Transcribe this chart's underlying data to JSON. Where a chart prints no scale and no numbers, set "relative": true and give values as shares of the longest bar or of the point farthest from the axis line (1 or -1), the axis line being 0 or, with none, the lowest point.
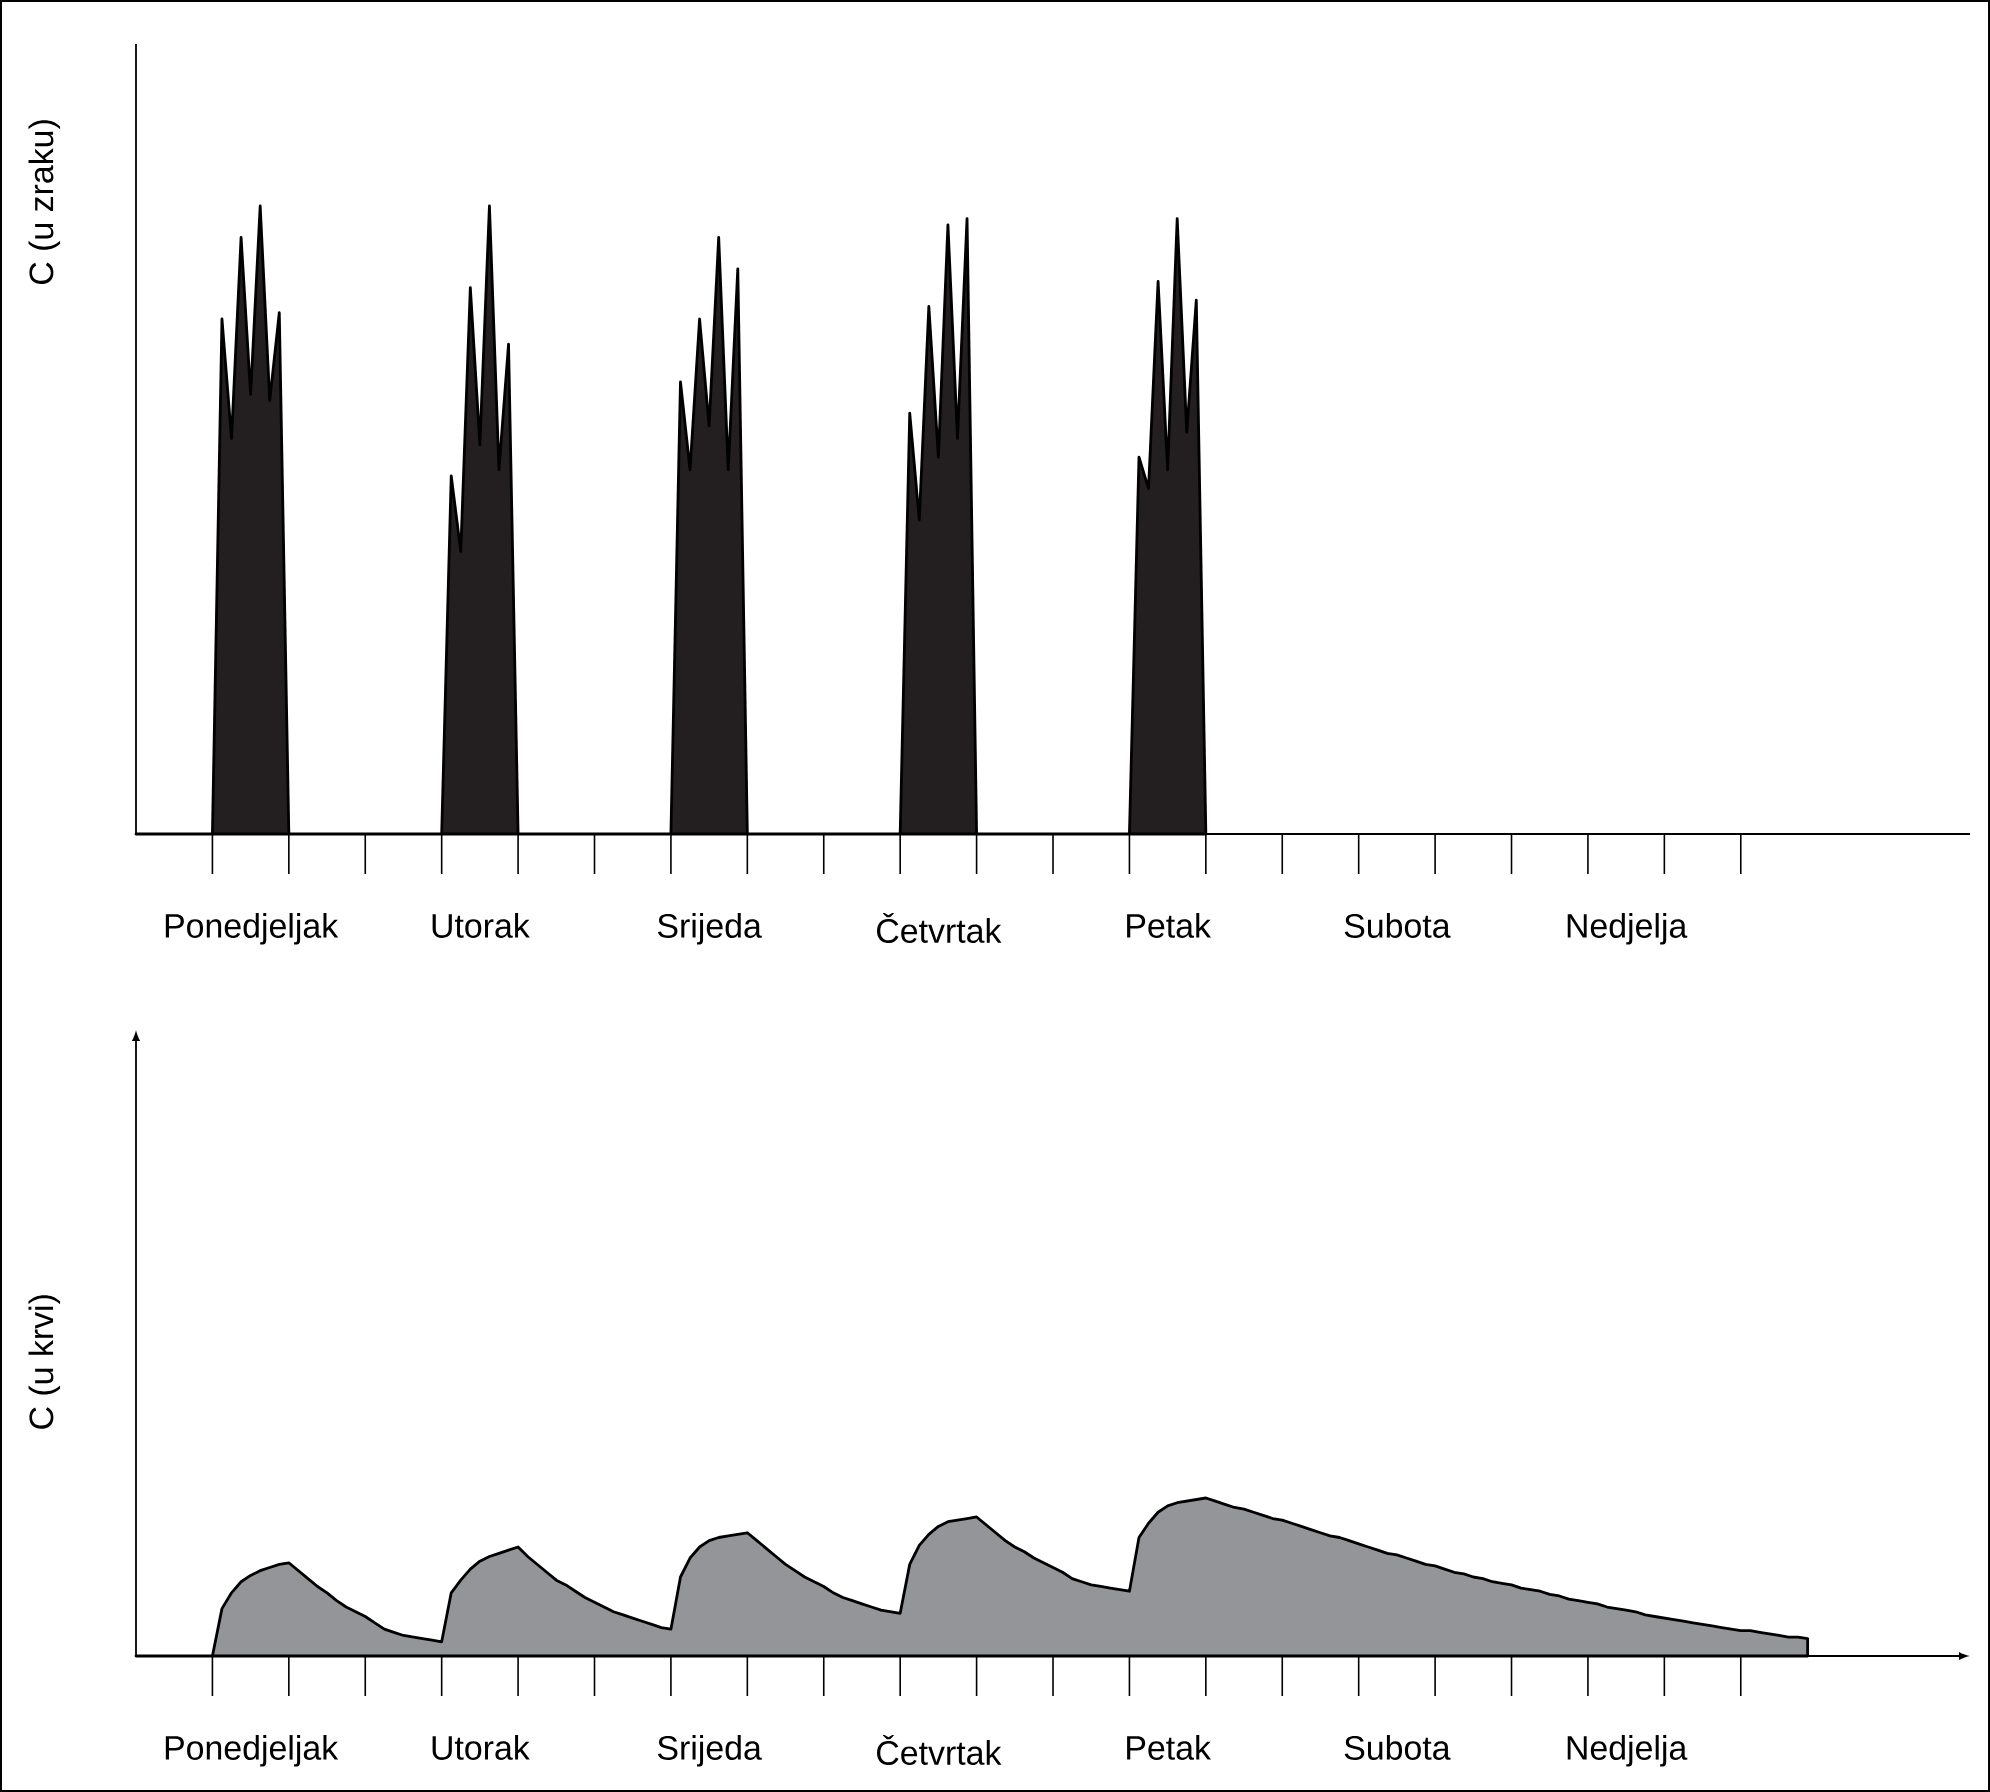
{
  "chart_data": [
    {
      "type": "area",
      "ylabel": "C (u zraku)",
      "relative": true,
      "categories": [
        null,
        null,
        null,
        null,
        null,
        null,
        null,
        null,
        null,
        null,
        null,
        null,
        "Ponedjeljak",
        null,
        null,
        null,
        null,
        null,
        null,
        null,
        null,
        null,
        null,
        null,
        null,
        null,
        null,
        null,
        null,
        null,
        null,
        null,
        null,
        null,
        null,
        null,
        "Utorak",
        null,
        null,
        null,
        null,
        null,
        null,
        null,
        null,
        null,
        null,
        null,
        null,
        null,
        null,
        null,
        null,
        null,
        null,
        null,
        null,
        null,
        null,
        null,
        "Srijeda",
        null,
        null,
        null,
        null,
        null,
        null,
        null,
        null,
        null,
        null,
        null,
        null,
        null,
        null,
        null,
        null,
        null,
        null,
        null,
        null,
        null,
        null,
        null,
        "Četvrtak",
        null,
        null,
        null,
        null,
        null,
        null,
        null,
        null,
        null,
        null,
        null,
        null,
        null,
        null,
        null,
        null,
        null,
        null,
        null,
        null,
        null,
        null,
        null,
        "Petak",
        null,
        null,
        null,
        null,
        null,
        null,
        null,
        null,
        null,
        null,
        null,
        null,
        null,
        null,
        null,
        null,
        null,
        null,
        null,
        null,
        null,
        null,
        null,
        "Subota",
        null,
        null,
        null,
        null,
        null,
        null,
        null,
        null,
        null,
        null,
        null,
        null,
        null,
        null,
        null,
        null,
        null,
        null,
        null,
        null,
        null,
        null,
        null,
        "Nedjelja",
        null,
        null,
        null,
        null,
        null,
        null,
        null,
        null,
        null,
        null,
        null,
        null,
        null,
        null,
        null,
        null,
        null,
        null,
        null,
        null,
        null,
        null,
        null,
        null,
        null,
        null,
        null,
        null,
        null,
        null,
        null,
        null,
        null,
        null,
        null,
        null
      ],
      "series": [
        {
          "color": "#231f20",
          "values": [
            0,
            0,
            0,
            0,
            0,
            0,
            0,
            0,
            0,
            0.82,
            0.63,
            0.95,
            0.7,
            1.0,
            0.69,
            0.83,
            0,
            0,
            0,
            0,
            0,
            0,
            0,
            0,
            0,
            0,
            0,
            0,
            0,
            0,
            0,
            0,
            0,
            0.57,
            0.45,
            0.87,
            0.62,
            1.0,
            0.58,
            0.78,
            0,
            0,
            0,
            0,
            0,
            0,
            0,
            0,
            0,
            0,
            0,
            0,
            0,
            0,
            0,
            0,
            0,
            0.72,
            0.58,
            0.82,
            0.65,
            0.95,
            0.58,
            0.9,
            0,
            0,
            0,
            0,
            0,
            0,
            0,
            0,
            0,
            0,
            0,
            0,
            0,
            0,
            0,
            0,
            0,
            0.67,
            0.5,
            0.84,
            0.6,
            0.97,
            0.63,
            0.98,
            0,
            0,
            0,
            0,
            0,
            0,
            0,
            0,
            0,
            0,
            0,
            0,
            0,
            0,
            0,
            0,
            0,
            0.6,
            0.55,
            0.88,
            0.58,
            0.98,
            0.64,
            0.85,
            0,
            null,
            null,
            null,
            null,
            null,
            null,
            null,
            null,
            null,
            null,
            null,
            null,
            null,
            null,
            null,
            null,
            null,
            null,
            null,
            null,
            null,
            null,
            null,
            null,
            null,
            null,
            null,
            null,
            null,
            null,
            null,
            null,
            null,
            null,
            null,
            null,
            null,
            null,
            null,
            null,
            null,
            null,
            null,
            null,
            null,
            null,
            null,
            null,
            null,
            null,
            null,
            null,
            null,
            null,
            null,
            null,
            null,
            null,
            null,
            null,
            null,
            null,
            null,
            null,
            null,
            null,
            null,
            null,
            null,
            null,
            null,
            null,
            null,
            null,
            null,
            null,
            null,
            null,
            null,
            null
          ]
        }
      ]
    },
    {
      "type": "area",
      "ylabel": "C (u krvi)",
      "relative": true,
      "categories": [
        null,
        null,
        null,
        null,
        null,
        null,
        null,
        null,
        null,
        null,
        null,
        null,
        "Ponedjeljak",
        null,
        null,
        null,
        null,
        null,
        null,
        null,
        null,
        null,
        null,
        null,
        null,
        null,
        null,
        null,
        null,
        null,
        null,
        null,
        null,
        null,
        null,
        null,
        "Utorak",
        null,
        null,
        null,
        null,
        null,
        null,
        null,
        null,
        null,
        null,
        null,
        null,
        null,
        null,
        null,
        null,
        null,
        null,
        null,
        null,
        null,
        null,
        null,
        "Srijeda",
        null,
        null,
        null,
        null,
        null,
        null,
        null,
        null,
        null,
        null,
        null,
        null,
        null,
        null,
        null,
        null,
        null,
        null,
        null,
        null,
        null,
        null,
        null,
        "Četvrtak",
        null,
        null,
        null,
        null,
        null,
        null,
        null,
        null,
        null,
        null,
        null,
        null,
        null,
        null,
        null,
        null,
        null,
        null,
        null,
        null,
        null,
        null,
        null,
        "Petak",
        null,
        null,
        null,
        null,
        null,
        null,
        null,
        null,
        null,
        null,
        null,
        null,
        null,
        null,
        null,
        null,
        null,
        null,
        null,
        null,
        null,
        null,
        null,
        "Subota",
        null,
        null,
        null,
        null,
        null,
        null,
        null,
        null,
        null,
        null,
        null,
        null,
        null,
        null,
        null,
        null,
        null,
        null,
        null,
        null,
        null,
        null,
        null,
        "Nedjelja",
        null,
        null,
        null,
        null,
        null,
        null,
        null,
        null,
        null,
        null,
        null,
        null,
        null,
        null,
        null,
        null,
        null,
        null,
        null,
        null,
        null,
        null,
        null,
        null,
        null,
        null,
        null,
        null,
        null,
        null,
        null,
        null,
        null,
        null,
        null,
        null
      ],
      "series": [
        {
          "color": "#939598",
          "values": [
            0,
            0,
            0,
            0,
            0,
            0,
            0,
            0,
            0,
            0.3,
            0.4,
            0.47,
            0.51,
            0.54,
            0.56,
            0.58,
            0.59,
            0.54,
            0.49,
            0.44,
            0.4,
            0.35,
            0.31,
            0.28,
            0.25,
            0.21,
            0.17,
            0.15,
            0.13,
            0.12,
            0.11,
            0.1,
            0.09,
            0.4,
            0.48,
            0.55,
            0.6,
            0.63,
            0.65,
            0.67,
            0.69,
            0.63,
            0.58,
            0.53,
            0.48,
            0.45,
            0.41,
            0.37,
            0.34,
            0.31,
            0.28,
            0.26,
            0.24,
            0.22,
            0.2,
            0.18,
            0.17,
            0.5,
            0.62,
            0.69,
            0.73,
            0.75,
            0.76,
            0.77,
            0.78,
            0.73,
            0.68,
            0.63,
            0.58,
            0.54,
            0.5,
            0.47,
            0.44,
            0.4,
            0.37,
            0.35,
            0.33,
            0.31,
            0.29,
            0.28,
            0.27,
            0.58,
            0.7,
            0.77,
            0.82,
            0.85,
            0.86,
            0.87,
            0.88,
            0.83,
            0.78,
            0.73,
            0.69,
            0.66,
            0.62,
            0.59,
            0.56,
            0.53,
            0.49,
            0.47,
            0.45,
            0.44,
            0.43,
            0.42,
            0.41,
            0.75,
            0.84,
            0.91,
            0.95,
            0.97,
            0.98,
            0.99,
            1.0,
            0.98,
            0.96,
            0.94,
            0.93,
            0.91,
            0.89,
            0.87,
            0.86,
            0.84,
            0.82,
            0.8,
            0.78,
            0.76,
            0.75,
            0.73,
            0.71,
            0.69,
            0.67,
            0.65,
            0.64,
            0.62,
            0.6,
            0.58,
            0.57,
            0.55,
            0.53,
            0.52,
            0.5,
            0.49,
            0.47,
            0.46,
            0.45,
            0.43,
            0.42,
            0.41,
            0.39,
            0.38,
            0.36,
            0.35,
            0.34,
            0.33,
            0.31,
            0.3,
            0.29,
            0.28,
            0.26,
            0.25,
            0.24,
            0.23,
            0.22,
            0.21,
            0.2,
            0.19,
            0.18,
            0.17,
            0.16,
            0.16,
            0.15,
            0.14,
            0.13,
            0.12,
            0.12,
            0.11,
            null,
            null,
            null,
            null,
            null,
            null,
            null,
            null,
            null,
            null,
            null,
            null,
            null,
            null,
            null,
            null,
            null
          ]
        }
      ]
    }
  ]
}
